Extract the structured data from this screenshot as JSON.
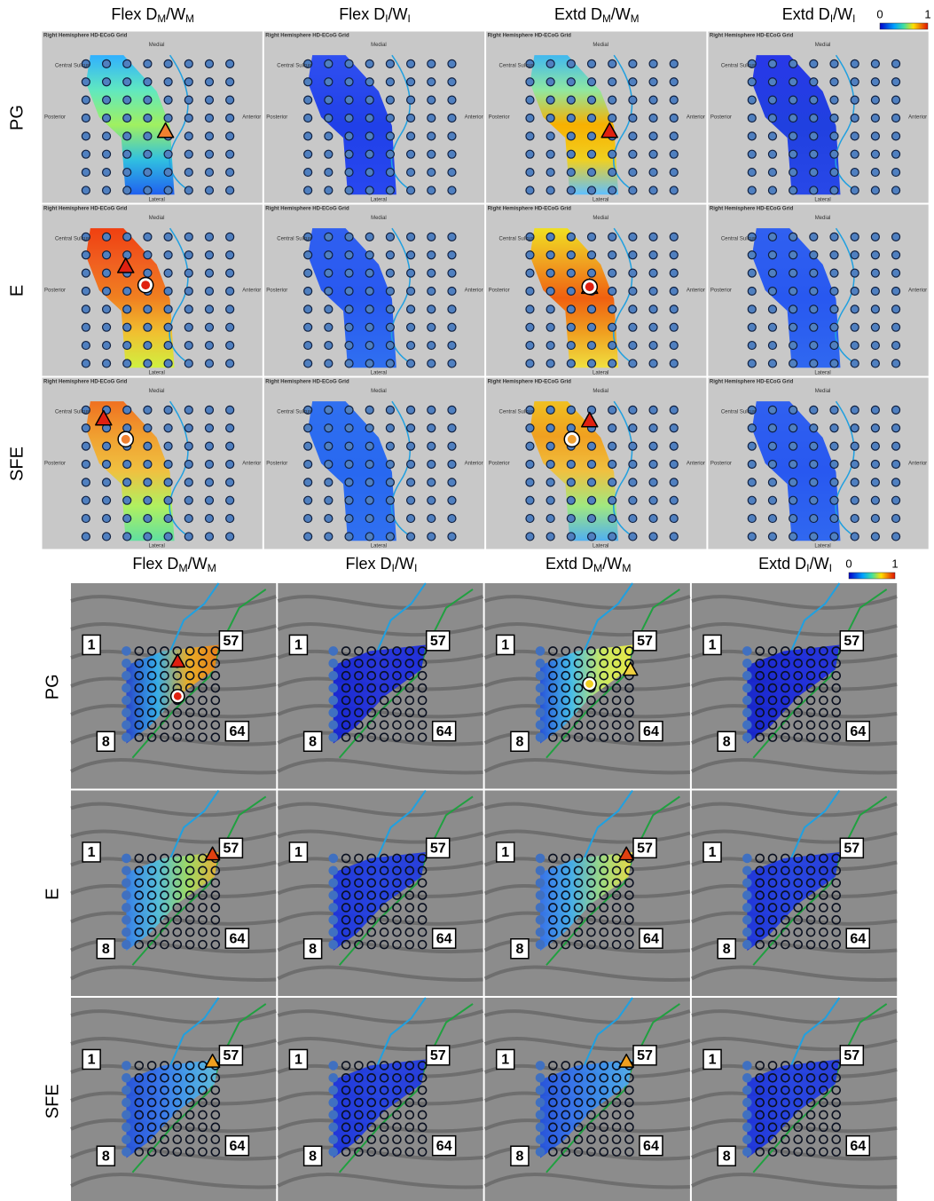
{
  "top_panel": {
    "columns": [
      [
        {
          "text": "Flex D"
        },
        {
          "text": "M",
          "sub": true
        },
        {
          "text": "/W"
        },
        {
          "text": "M",
          "sub": true
        }
      ],
      [
        {
          "text": "Flex D"
        },
        {
          "text": "I",
          "sub": true
        },
        {
          "text": "/W"
        },
        {
          "text": "I",
          "sub": true
        }
      ],
      [
        {
          "text": "Extd D"
        },
        {
          "text": "M",
          "sub": true
        },
        {
          "text": "/W"
        },
        {
          "text": "M",
          "sub": true
        }
      ],
      [
        {
          "text": "Extd D"
        },
        {
          "text": "I",
          "sub": true
        },
        {
          "text": "/W"
        },
        {
          "text": "I",
          "sub": true
        }
      ]
    ],
    "rows": [
      "PG",
      "E",
      "SFE"
    ],
    "colorbar": {
      "min_label": "0",
      "max_label": "1"
    },
    "grid_labels": {
      "title": "Right Hemisphere HD-ECoG Grid",
      "top": "Medial",
      "bottom": "Lateral",
      "left": "Posterior",
      "right": "Anterior",
      "sulcus": "Central Sulcus"
    }
  },
  "bottom_panel": {
    "columns": [
      [
        {
          "text": "Flex D"
        },
        {
          "text": "M",
          "sub": true
        },
        {
          "text": "/W"
        },
        {
          "text": "M",
          "sub": true
        }
      ],
      [
        {
          "text": "Flex D"
        },
        {
          "text": "I",
          "sub": true
        },
        {
          "text": "/W"
        },
        {
          "text": "I",
          "sub": true
        }
      ],
      [
        {
          "text": "Extd D"
        },
        {
          "text": "M",
          "sub": true
        },
        {
          "text": "/W"
        },
        {
          "text": "M",
          "sub": true
        }
      ],
      [
        {
          "text": "Extd D"
        },
        {
          "text": "I",
          "sub": true
        },
        {
          "text": "/W"
        },
        {
          "text": "I",
          "sub": true
        }
      ]
    ],
    "rows": [
      "PG",
      "E",
      "SFE"
    ],
    "colorbar": {
      "min_label": "0",
      "max_label": "1"
    },
    "electrode_labels": [
      "1",
      "57",
      "8",
      "64"
    ]
  }
}
